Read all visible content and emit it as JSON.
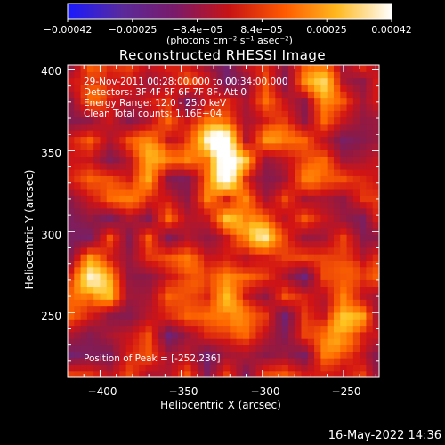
{
  "colorbar": {
    "ticks": [
      "−0.00042",
      "−0.00025",
      "−8.4e−05",
      "8.4e−05",
      "0.00025",
      "0.00042"
    ],
    "units": "(photons cm⁻² s⁻¹ asec⁻²)",
    "range": [
      -0.00042,
      0.00042
    ]
  },
  "header": {
    "title": "Reconstructed RHESSI Image"
  },
  "info": {
    "line1": "29-Nov-2011 00:28:00.000 to 00:34:00.000",
    "line2": "Detectors: 3F 4F 5F 6F 7F 8F, Att 0",
    "line3": "Energy Range: 12.0 - 25.0 keV",
    "line4": "Clean     Total counts: 1.16E+04",
    "peak": "Position of Peak = [-252,236]"
  },
  "footer": {
    "timestamp": "16-May-2022 14:36"
  },
  "chart_data": {
    "type": "heatmap",
    "title": "Reconstructed RHESSI Image",
    "xlabel": "Heliocentric X (arcsec)",
    "ylabel": "Heliocentric Y (arcsec)",
    "xlim": [
      -420,
      -228
    ],
    "ylim": [
      210,
      403
    ],
    "x_ticks": [
      -400,
      -350,
      -300,
      -250
    ],
    "y_ticks": [
      250,
      300,
      350,
      400
    ],
    "x_tick_labels": [
      "−400",
      "−350",
      "−300",
      "−250"
    ],
    "y_tick_labels": [
      "250",
      "300",
      "350",
      "400"
    ],
    "colormap": [
      "#1a1aff",
      "#5a2a9a",
      "#8a1a4a",
      "#d21414",
      "#ff6a00",
      "#ffc21e",
      "#ffffff"
    ],
    "peak_position": [
      -252,
      236
    ],
    "bright_regions": [
      {
        "x": -328,
        "y": 357,
        "value": 0.0004
      },
      {
        "x": -308,
        "y": 300,
        "value": 0.00042
      },
      {
        "x": -322,
        "y": 333,
        "value": 0.00036
      },
      {
        "x": -368,
        "y": 352,
        "value": 0.0003
      },
      {
        "x": -252,
        "y": 236,
        "value": 0.00042
      },
      {
        "x": -405,
        "y": 268,
        "value": 0.00032
      },
      {
        "x": -318,
        "y": 250,
        "value": 0.00028
      },
      {
        "x": -400,
        "y": 385,
        "value": 0.00026
      },
      {
        "x": -262,
        "y": 393,
        "value": 0.00024
      },
      {
        "x": -244,
        "y": 278,
        "value": 0.0002
      },
      {
        "x": -268,
        "y": 333,
        "value": 0.0002
      },
      {
        "x": -378,
        "y": 322,
        "value": 0.00018
      },
      {
        "x": -340,
        "y": 272,
        "value": 0.00022
      },
      {
        "x": -290,
        "y": 362,
        "value": 0.0002
      }
    ]
  }
}
